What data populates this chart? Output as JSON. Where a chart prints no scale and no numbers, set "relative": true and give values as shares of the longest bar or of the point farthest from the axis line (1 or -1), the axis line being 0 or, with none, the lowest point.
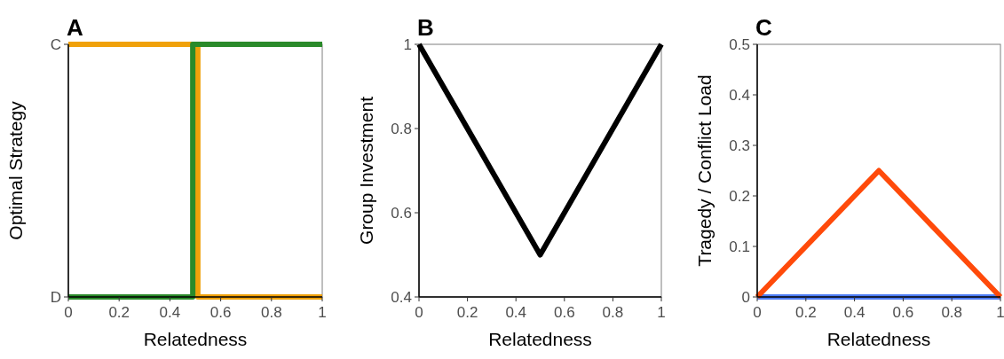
{
  "chart_data": [
    {
      "type": "line",
      "title": "A",
      "xlabel": "Relatedness",
      "ylabel": "Optimal Strategy",
      "xlim": [
        0,
        1
      ],
      "xticks": [
        0,
        0.2,
        0.4,
        0.6,
        0.8,
        1
      ],
      "relative": true,
      "annotations": [
        "D",
        "C"
      ],
      "grid": false,
      "series": [
        {
          "color": "#f0a10a",
          "x": [
            0,
            0.51,
            0.51,
            1
          ],
          "values": [
            1,
            1,
            0,
            0
          ]
        },
        {
          "color": "#2a8a2a",
          "x": [
            0,
            0.49,
            0.49,
            1
          ],
          "values": [
            0,
            0,
            1,
            1
          ]
        }
      ]
    },
    {
      "type": "line",
      "title": "B",
      "xlabel": "Relatedness",
      "ylabel": "Group Investment",
      "xlim": [
        0,
        1
      ],
      "xticks": [
        0,
        0.2,
        0.4,
        0.6,
        0.8,
        1
      ],
      "ylim": [
        0.4,
        1
      ],
      "yticks": [
        0.4,
        0.6,
        0.8,
        1
      ],
      "grid": false,
      "series": [
        {
          "color": "#000000",
          "x": [
            0,
            0.5,
            1
          ],
          "values": [
            1,
            0.5,
            1
          ]
        }
      ]
    },
    {
      "type": "line",
      "title": "C",
      "xlabel": "Relatedness",
      "ylabel": "Tragedy / Conflict Load",
      "xlim": [
        0,
        1
      ],
      "xticks": [
        0,
        0.2,
        0.4,
        0.6,
        0.8,
        1
      ],
      "ylim": [
        0,
        0.5
      ],
      "yticks": [
        0,
        0.1,
        0.2,
        0.3,
        0.4,
        0.5
      ],
      "grid": false,
      "series": [
        {
          "color": "#4d7cf5",
          "x": [
            0,
            1
          ],
          "values": [
            0,
            0
          ]
        },
        {
          "color": "#ff4a0a",
          "x": [
            0,
            0.5,
            1
          ],
          "values": [
            0,
            0.25,
            0
          ]
        }
      ]
    }
  ]
}
